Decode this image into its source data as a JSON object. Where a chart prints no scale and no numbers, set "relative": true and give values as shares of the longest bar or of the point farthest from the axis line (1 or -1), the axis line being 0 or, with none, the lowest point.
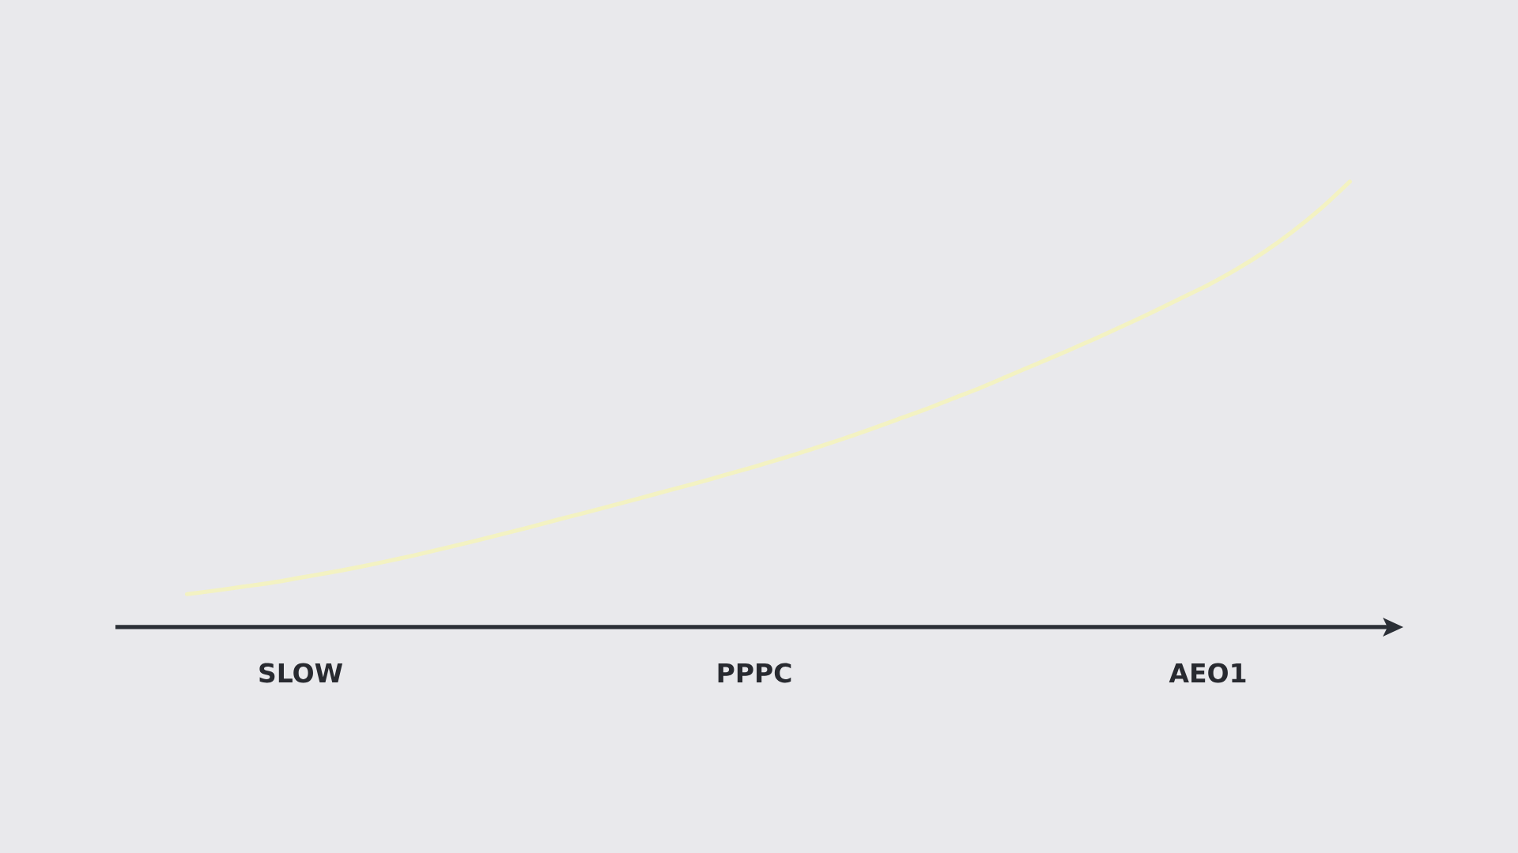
{
  "chart_data": {
    "type": "line",
    "relative": true,
    "categories": [
      null,
      null,
      null,
      null,
      "SLOW",
      null,
      null,
      null,
      null,
      null,
      null,
      null,
      null,
      null,
      null,
      null,
      null,
      null,
      null,
      null,
      "PPPC",
      null,
      null,
      null,
      null,
      null,
      null,
      null,
      null,
      null,
      null,
      null,
      null,
      null,
      null,
      null,
      "AEO1",
      null,
      null,
      null,
      null,
      null
    ],
    "values": [
      0.074,
      0.082,
      0.091,
      0.1,
      0.111,
      0.122,
      0.134,
      0.147,
      0.161,
      0.176,
      0.191,
      0.207,
      0.223,
      0.24,
      0.256,
      0.273,
      0.29,
      0.307,
      0.324,
      0.342,
      0.36,
      0.379,
      0.399,
      0.42,
      0.442,
      0.465,
      0.488,
      0.513,
      0.538,
      0.565,
      0.592,
      0.619,
      0.647,
      0.676,
      0.706,
      0.737,
      0.768,
      0.803,
      0.843,
      0.889,
      0.941,
      1
    ],
    "color": "#f3f2c2"
  }
}
